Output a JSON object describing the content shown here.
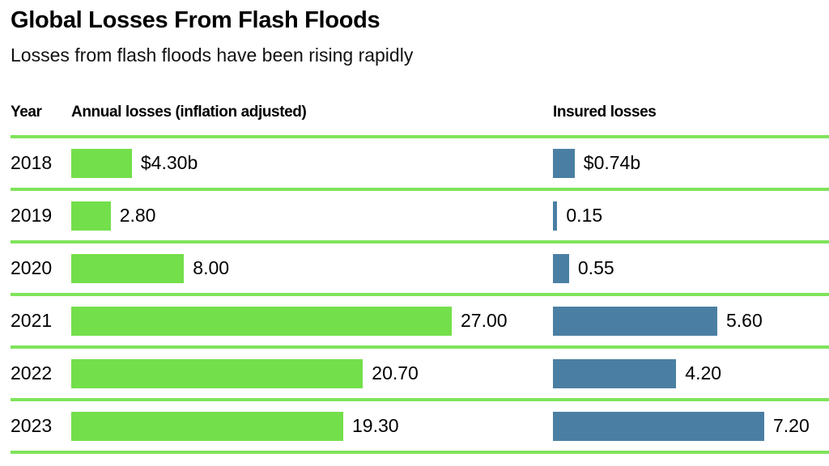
{
  "header": {
    "title": "Global Losses From Flash Floods",
    "subtitle": "Losses from flash floods have been rising rapidly"
  },
  "table": {
    "columns": [
      "Year",
      "Annual losses (inflation adjusted)",
      "Insured losses"
    ]
  },
  "chart_data": {
    "type": "bar",
    "orientation": "horizontal",
    "title": "Global Losses From Flash Floods",
    "subtitle": "Losses from flash floods have been rising rapidly",
    "unit": "billions of dollars",
    "categories": [
      "2018",
      "2019",
      "2020",
      "2021",
      "2022",
      "2023"
    ],
    "series": [
      {
        "name": "Annual losses (inflation adjusted)",
        "color": "#73DF4B",
        "values": [
          4.3,
          2.8,
          8.0,
          27.0,
          20.7,
          19.3
        ],
        "labels": [
          "$4.30b",
          "2.80",
          "8.00",
          "27.00",
          "20.70",
          "19.30"
        ]
      },
      {
        "name": "Insured losses",
        "color": "#4A7FA3",
        "values": [
          0.74,
          0.15,
          0.55,
          5.6,
          4.2,
          7.2
        ],
        "labels": [
          "$0.74b",
          "0.15",
          "0.55",
          "5.60",
          "4.20",
          "7.20"
        ]
      }
    ],
    "annual_axis_max": 27.0,
    "insured_axis_max": 7.2,
    "grid": "row-dividers-only",
    "legend": "column-headers"
  },
  "colors": {
    "annual_bar": "#73DF4B",
    "insured_bar": "#4A7FA3",
    "divider": "#7FE35B",
    "text": "#000000",
    "background": "#FFFFFF"
  }
}
